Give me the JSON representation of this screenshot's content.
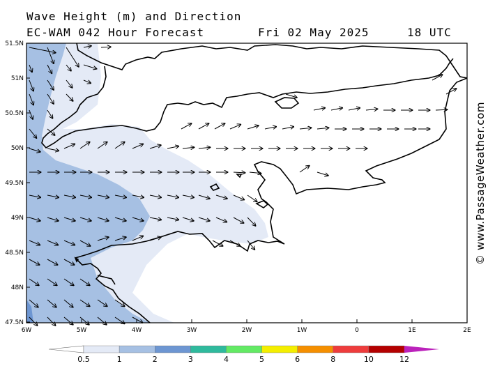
{
  "header": {
    "title_line1": "Wave Height (m) and Direction",
    "model": "EC-WAM 042 Hour Forecast",
    "date": "Fri 02 May 2025",
    "time": "18 UTC"
  },
  "axes": {
    "lat_labels": [
      "51.5N",
      "51N",
      "50.5N",
      "50N",
      "49.5N",
      "49N",
      "48.5N",
      "48N",
      "47.5N"
    ],
    "lon_labels": [
      "6W",
      "5W",
      "4W",
      "3W",
      "2W",
      "1W",
      "0",
      "1E",
      "2E"
    ]
  },
  "legend": {
    "levels": [
      "0.5",
      "1",
      "2",
      "3",
      "4",
      "5",
      "6",
      "8",
      "10",
      "12"
    ],
    "colors": [
      "#e4eaf6",
      "#a6c0e3",
      "#6d96d2",
      "#2fba9d",
      "#63ea64",
      "#f4ee00",
      "#f58f00",
      "#ee3c3c",
      "#b40000",
      "#bb22bb"
    ],
    "under_color": "#ffffff",
    "over_color": "#bb22bb"
  },
  "credit": "© www.PassageWeather.com",
  "wave_direction_note_icon": "arrow-icon"
}
